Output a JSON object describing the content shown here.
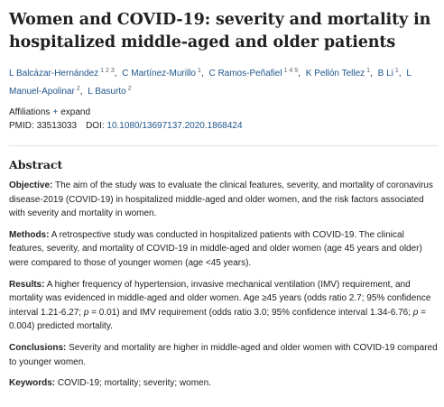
{
  "article": {
    "title": "Women and COVID-19: severity and mortality in hospitalized middle-aged and older patients"
  },
  "authors": [
    {
      "name": "L Balcázar-Hernández",
      "sup": "1 2 3"
    },
    {
      "name": "C Martínez-Murillo",
      "sup": "1"
    },
    {
      "name": "C Ramos-Peñafiel",
      "sup": "1 4 5"
    },
    {
      "name": "K Pellón Tellez",
      "sup": "1"
    },
    {
      "name": "B Li",
      "sup": "1"
    },
    {
      "name": "L Manuel-Apolinar",
      "sup": "2"
    },
    {
      "name": "L Basurto",
      "sup": "2"
    }
  ],
  "affiliations": {
    "label": "Affiliations",
    "plus": "+",
    "expand": "expand"
  },
  "identifiers": {
    "pmid_label": "PMID:",
    "pmid": "33513033",
    "doi_label": "DOI:",
    "doi": "10.1080/13697137.2020.1868424"
  },
  "abstract": {
    "heading": "Abstract",
    "objective_label": "Objective:",
    "objective": "The aim of the study was to evaluate the clinical features, severity, and mortality of coronavirus disease-2019 (COVID-19) in hospitalized middle-aged and older women, and the risk factors associated with severity and mortality in women.",
    "methods_label": "Methods:",
    "methods": "A retrospective study was conducted in hospitalized patients with COVID-19. The clinical features, severity, and mortality of COVID-19 in middle-aged and older women (age 45 years and older) were compared to those of younger women (age <45 years).",
    "results_label": "Results:",
    "results_a": "A higher frequency of hypertension, invasive mechanical ventilation (IMV) requirement, and mortality was evidenced in middle-aged and older women. Age ≥45 years (odds ratio 2.7; 95% confidence interval 1.21-6.27;",
    "results_p1": "p",
    "results_b": "= 0.01) and IMV requirement (odds ratio 3.0; 95% confidence interval 1.34-6.76;",
    "results_p2": "p",
    "results_c": "= 0.004) predicted mortality.",
    "conclusions_label": "Conclusions:",
    "conclusions": "Severity and mortality are higher in middle-aged and older women with COVID-19 compared to younger women."
  },
  "keywords": {
    "label": "Keywords:",
    "text": "COVID-19; mortality; severity; women."
  }
}
